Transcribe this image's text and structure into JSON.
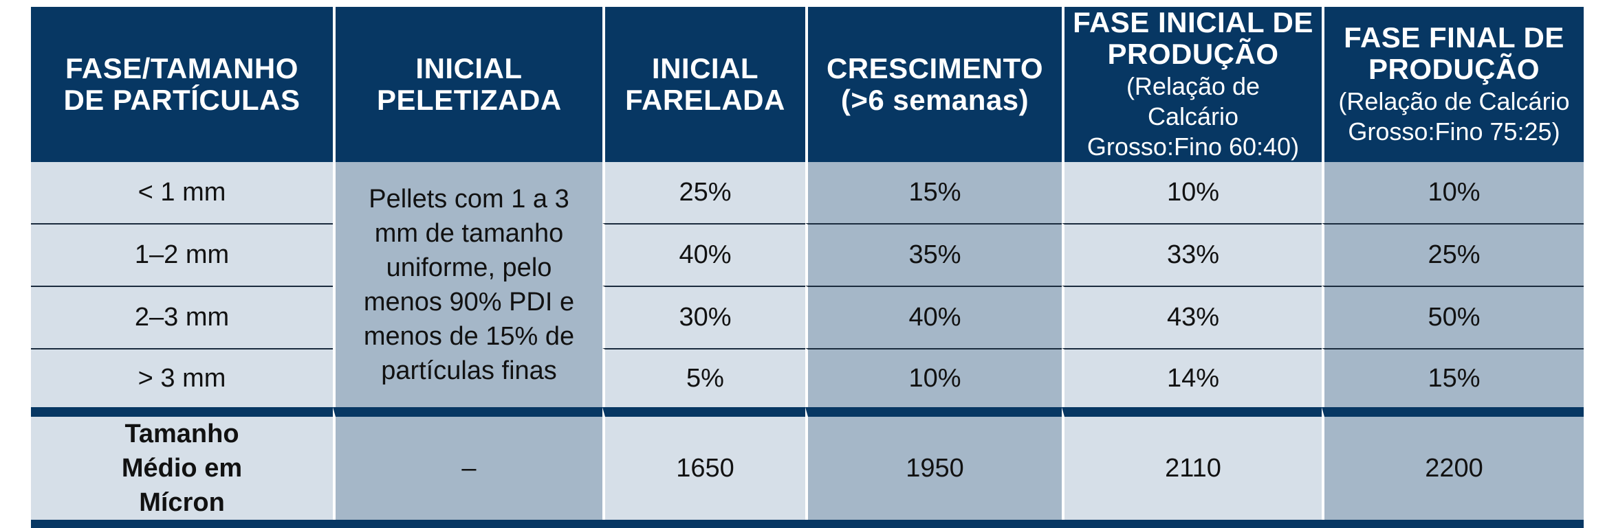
{
  "headers": [
    {
      "main": "FASE/TAMANHO DE PARTÍCULAS",
      "sub": ""
    },
    {
      "main": "INICIAL PELETIZADA",
      "sub": ""
    },
    {
      "main": "INICIAL FARELADA",
      "sub": ""
    },
    {
      "main": "CRESCIMENTO (>6 semanas)",
      "sub": ""
    },
    {
      "main": "FASE INICIAL DE PRODUÇÃO",
      "sub": "(Relação de Calcário Grosso:Fino 60:40)"
    },
    {
      "main": "FASE FINAL DE PRODUÇÃO",
      "sub": "(Relação de Calcário Grosso:Fino 75:25)"
    }
  ],
  "pelletized_note": "Pellets com 1 a 3 mm de tamanho uniforme, pelo menos 90% PDI e menos de 15% de partículas finas",
  "rows": [
    {
      "size": "< 1 mm",
      "farelada": "25%",
      "crescimento": "15%",
      "inicial_producao": "10%",
      "final_producao": "10%"
    },
    {
      "size": "1–2 mm",
      "farelada": "40%",
      "crescimento": "35%",
      "inicial_producao": "33%",
      "final_producao": "25%"
    },
    {
      "size": "2–3 mm",
      "farelada": "30%",
      "crescimento": "40%",
      "inicial_producao": "43%",
      "final_producao": "50%"
    },
    {
      "size": "> 3 mm",
      "farelada": "5%",
      "crescimento": "10%",
      "inicial_producao": "14%",
      "final_producao": "15%"
    }
  ],
  "footer": {
    "label": "Tamanho Médio em Mícron",
    "peletizada": "–",
    "farelada": "1650",
    "crescimento": "1950",
    "inicial_producao": "2110",
    "final_producao": "2200"
  },
  "colors": {
    "header_bg": "#073763",
    "light_cell": "#d6dfe8",
    "dark_cell": "#a5b7c8"
  }
}
